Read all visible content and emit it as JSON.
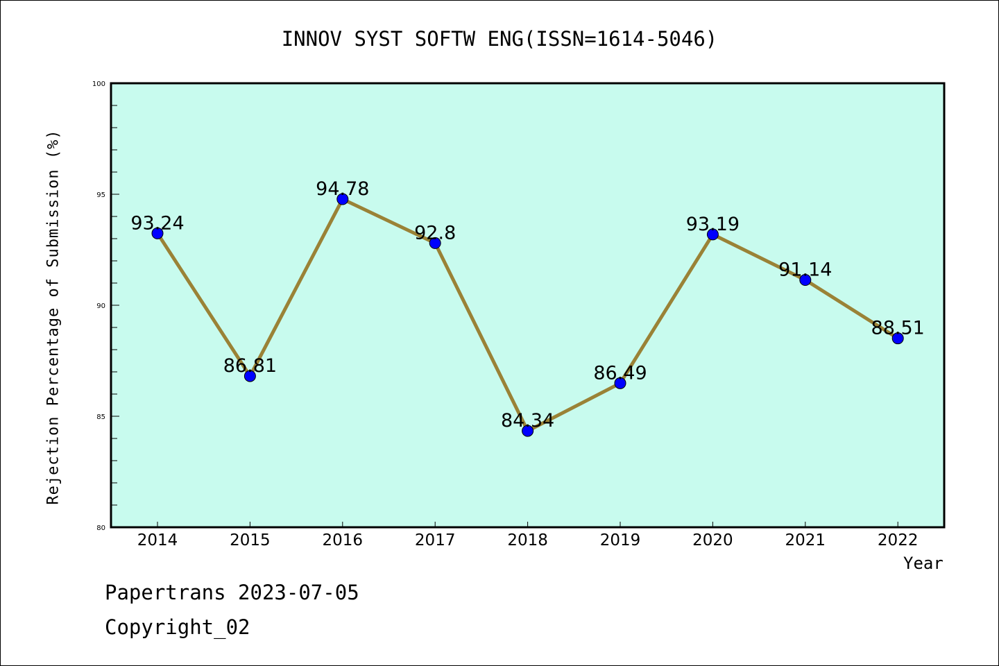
{
  "chart_data": {
    "type": "line",
    "title": "INNOV SYST SOFTW ENG(ISSN=1614-5046)",
    "xlabel": "Year",
    "ylabel": "Rejection Percentage of Submission (%)",
    "categories": [
      "2014",
      "2015",
      "2016",
      "2017",
      "2018",
      "2019",
      "2020",
      "2021",
      "2022"
    ],
    "values": [
      93.24,
      86.81,
      94.78,
      92.8,
      84.34,
      86.49,
      93.19,
      91.14,
      88.51
    ],
    "data_labels": [
      "93.24",
      "86.81",
      "94.78",
      "92.8",
      "84.34",
      "86.49",
      "93.19",
      "91.14",
      "88.51"
    ],
    "ylim": [
      80,
      100
    ],
    "yticks": [
      "80",
      "85",
      "90",
      "95",
      "100"
    ],
    "grid": false,
    "colors": {
      "background": "#c8fbee",
      "line": "#9a8236",
      "marker": "#0000ff"
    }
  },
  "footer": {
    "line1": "Papertrans 2023-07-05",
    "line2": "Copyright_02"
  }
}
